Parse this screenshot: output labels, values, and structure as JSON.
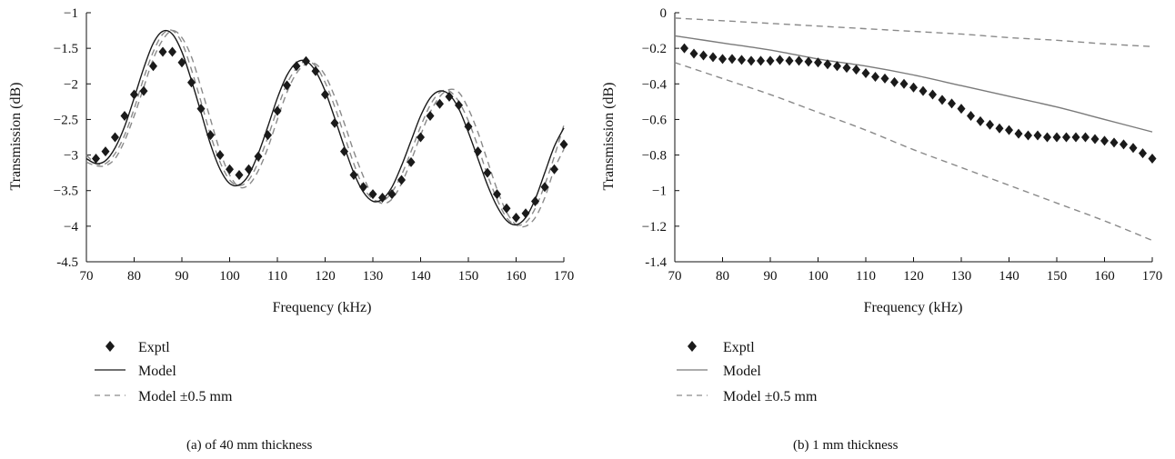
{
  "chart_data": [
    {
      "type": "line",
      "caption": "(a)  of 40 mm thickness",
      "xlabel": "Frequency (kHz)",
      "ylabel": "Transmission (dB)",
      "xlim": [
        70,
        170
      ],
      "ylim": [
        -4.5,
        -1
      ],
      "xticks": [
        70,
        80,
        90,
        100,
        110,
        120,
        130,
        140,
        150,
        160,
        170
      ],
      "yticks": [
        -4.5,
        -4,
        -3.5,
        -3,
        -2.5,
        -2,
        -1.5,
        -1
      ],
      "ytick_labels": [
        "-4.5",
        "−4",
        "−3.5",
        "−3",
        "−2.5",
        "−2",
        "−1.5",
        "−1"
      ],
      "grid": false,
      "legend_position": "bottom-left",
      "series": [
        {
          "name": "Exptl",
          "style": "diamond",
          "color": "#1a1a1a",
          "x": [
            72,
            74,
            76,
            78,
            80,
            82,
            84,
            86,
            88,
            90,
            92,
            94,
            96,
            98,
            100,
            102,
            104,
            106,
            108,
            110,
            112,
            114,
            116,
            118,
            120,
            122,
            124,
            126,
            128,
            130,
            132,
            134,
            136,
            138,
            140,
            142,
            144,
            146,
            148,
            150,
            152,
            154,
            156,
            158,
            160,
            162,
            164,
            166,
            168,
            170
          ],
          "y": [
            -3.05,
            -2.95,
            -2.75,
            -2.45,
            -2.15,
            -2.1,
            -1.75,
            -1.55,
            -1.55,
            -1.7,
            -1.98,
            -2.35,
            -2.72,
            -3.0,
            -3.2,
            -3.28,
            -3.2,
            -3.02,
            -2.72,
            -2.38,
            -2.02,
            -1.75,
            -1.68,
            -1.82,
            -2.15,
            -2.55,
            -2.95,
            -3.28,
            -3.45,
            -3.55,
            -3.6,
            -3.55,
            -3.35,
            -3.1,
            -2.75,
            -2.45,
            -2.28,
            -2.18,
            -2.3,
            -2.6,
            -2.95,
            -3.25,
            -3.55,
            -3.75,
            -3.88,
            -3.82,
            -3.65,
            -3.45,
            -3.2,
            -2.85
          ]
        },
        {
          "name": "Model",
          "style": "solid",
          "color": "#1a1a1a",
          "x": [
            70,
            72,
            74,
            76,
            78,
            80,
            82,
            84,
            86,
            88,
            90,
            92,
            94,
            96,
            98,
            100,
            102,
            104,
            106,
            108,
            110,
            112,
            114,
            116,
            118,
            120,
            122,
            124,
            126,
            128,
            130,
            132,
            134,
            136,
            138,
            140,
            142,
            144,
            146,
            148,
            150,
            152,
            154,
            156,
            158,
            160,
            162,
            164,
            166,
            168,
            170
          ],
          "y": [
            -3.05,
            -3.12,
            -3.08,
            -2.9,
            -2.6,
            -2.2,
            -1.78,
            -1.43,
            -1.26,
            -1.3,
            -1.55,
            -1.95,
            -2.4,
            -2.85,
            -3.2,
            -3.4,
            -3.42,
            -3.28,
            -2.98,
            -2.6,
            -2.2,
            -1.88,
            -1.7,
            -1.68,
            -1.82,
            -2.1,
            -2.48,
            -2.88,
            -3.25,
            -3.52,
            -3.65,
            -3.62,
            -3.45,
            -3.15,
            -2.8,
            -2.45,
            -2.2,
            -2.1,
            -2.15,
            -2.35,
            -2.68,
            -3.05,
            -3.42,
            -3.72,
            -3.92,
            -3.98,
            -3.88,
            -3.62,
            -3.25,
            -2.88,
            -2.62
          ]
        },
        {
          "name": "Model ±0.5 mm",
          "style": "dashed",
          "color": "#8a8a8a",
          "x": [
            70,
            72,
            74,
            76,
            78,
            80,
            82,
            84,
            86,
            88,
            90,
            92,
            94,
            96,
            98,
            100,
            102,
            104,
            106,
            108,
            110,
            112,
            114,
            116,
            118,
            120,
            122,
            124,
            126,
            128,
            130,
            132,
            134,
            136,
            138,
            140,
            142,
            144,
            146,
            148,
            150,
            152,
            154,
            156,
            158,
            160,
            162,
            164,
            166,
            168,
            170
          ],
          "y": [
            -3.0,
            -3.12,
            -3.12,
            -2.98,
            -2.72,
            -2.35,
            -1.92,
            -1.55,
            -1.3,
            -1.25,
            -1.42,
            -1.8,
            -2.25,
            -2.72,
            -3.1,
            -3.35,
            -3.43,
            -3.35,
            -3.1,
            -2.75,
            -2.35,
            -2.0,
            -1.78,
            -1.68,
            -1.75,
            -1.98,
            -2.32,
            -2.72,
            -3.12,
            -3.45,
            -3.62,
            -3.65,
            -3.52,
            -3.28,
            -2.95,
            -2.6,
            -2.3,
            -2.12,
            -2.1,
            -2.25,
            -2.52,
            -2.88,
            -3.28,
            -3.62,
            -3.88,
            -3.98,
            -3.95,
            -3.75,
            -3.42,
            -3.02,
            -2.58
          ]
        },
        {
          "name": "Model ±0.5 mm",
          "style": "dashed",
          "color": "#8a8a8a",
          "x": [
            70,
            72,
            74,
            76,
            78,
            80,
            82,
            84,
            86,
            88,
            90,
            92,
            94,
            96,
            98,
            100,
            102,
            104,
            106,
            108,
            110,
            112,
            114,
            116,
            118,
            120,
            122,
            124,
            126,
            128,
            130,
            132,
            134,
            136,
            138,
            140,
            142,
            144,
            146,
            148,
            150,
            152,
            154,
            156,
            158,
            160,
            162,
            164,
            166,
            168,
            170
          ],
          "y": [
            -3.1,
            -3.15,
            -3.15,
            -3.05,
            -2.8,
            -2.45,
            -2.05,
            -1.65,
            -1.38,
            -1.25,
            -1.35,
            -1.62,
            -2.05,
            -2.5,
            -2.95,
            -3.28,
            -3.45,
            -3.42,
            -3.22,
            -2.9,
            -2.5,
            -2.12,
            -1.85,
            -1.72,
            -1.72,
            -1.88,
            -2.18,
            -2.55,
            -2.95,
            -3.3,
            -3.58,
            -3.68,
            -3.62,
            -3.4,
            -3.08,
            -2.72,
            -2.4,
            -2.18,
            -2.08,
            -2.12,
            -2.35,
            -2.68,
            -3.08,
            -3.48,
            -3.8,
            -3.98,
            -4.0,
            -3.88,
            -3.6,
            -3.2,
            -2.92
          ]
        }
      ]
    },
    {
      "type": "line",
      "caption": "(b)  1 mm thickness",
      "xlabel": "Frequency (kHz)",
      "ylabel": "Transmission (dB)",
      "xlim": [
        70,
        170
      ],
      "ylim": [
        -1.4,
        0
      ],
      "xticks": [
        70,
        80,
        90,
        100,
        110,
        120,
        130,
        140,
        150,
        160,
        170
      ],
      "yticks": [
        -1.4,
        -1.2,
        -1,
        -0.8,
        -0.6,
        -0.4,
        -0.2,
        0
      ],
      "ytick_labels": [
        "-1.4",
        "−1.2",
        "−1",
        "−0.8",
        "−0.6",
        "−0.4",
        "−0.2",
        "0"
      ],
      "grid": false,
      "legend_position": "bottom-left",
      "series": [
        {
          "name": "Exptl",
          "style": "diamond",
          "color": "#1a1a1a",
          "x": [
            72,
            74,
            76,
            78,
            80,
            82,
            84,
            86,
            88,
            90,
            92,
            94,
            96,
            98,
            100,
            102,
            104,
            106,
            108,
            110,
            112,
            114,
            116,
            118,
            120,
            122,
            124,
            126,
            128,
            130,
            132,
            134,
            136,
            138,
            140,
            142,
            144,
            146,
            148,
            150,
            152,
            154,
            156,
            158,
            160,
            162,
            164,
            166,
            168,
            170
          ],
          "y": [
            -0.2,
            -0.23,
            -0.24,
            -0.25,
            -0.26,
            -0.26,
            -0.265,
            -0.27,
            -0.27,
            -0.27,
            -0.265,
            -0.27,
            -0.27,
            -0.275,
            -0.28,
            -0.29,
            -0.3,
            -0.31,
            -0.32,
            -0.34,
            -0.36,
            -0.37,
            -0.39,
            -0.4,
            -0.42,
            -0.44,
            -0.46,
            -0.49,
            -0.51,
            -0.54,
            -0.58,
            -0.61,
            -0.63,
            -0.65,
            -0.66,
            -0.68,
            -0.69,
            -0.69,
            -0.7,
            -0.7,
            -0.7,
            -0.7,
            -0.7,
            -0.71,
            -0.72,
            -0.73,
            -0.74,
            -0.76,
            -0.79,
            -0.82
          ]
        },
        {
          "name": "Model",
          "style": "solid",
          "color": "#7a7a7a",
          "x": [
            70,
            80,
            90,
            100,
            110,
            120,
            130,
            140,
            150,
            160,
            170
          ],
          "y": [
            -0.13,
            -0.17,
            -0.21,
            -0.26,
            -0.3,
            -0.35,
            -0.41,
            -0.47,
            -0.53,
            -0.6,
            -0.67
          ]
        },
        {
          "name": "Model ±0.5 mm",
          "style": "dashed",
          "color": "#8a8a8a",
          "x": [
            70,
            80,
            90,
            100,
            110,
            120,
            130,
            140,
            150,
            160,
            170
          ],
          "y": [
            -0.03,
            -0.045,
            -0.06,
            -0.075,
            -0.09,
            -0.105,
            -0.12,
            -0.14,
            -0.155,
            -0.175,
            -0.19
          ]
        },
        {
          "name": "Model ±0.5 mm",
          "style": "dashed",
          "color": "#8a8a8a",
          "x": [
            70,
            80,
            90,
            100,
            110,
            120,
            130,
            140,
            150,
            160,
            170
          ],
          "y": [
            -0.28,
            -0.37,
            -0.46,
            -0.56,
            -0.66,
            -0.77,
            -0.87,
            -0.97,
            -1.07,
            -1.17,
            -1.28
          ]
        }
      ]
    }
  ]
}
